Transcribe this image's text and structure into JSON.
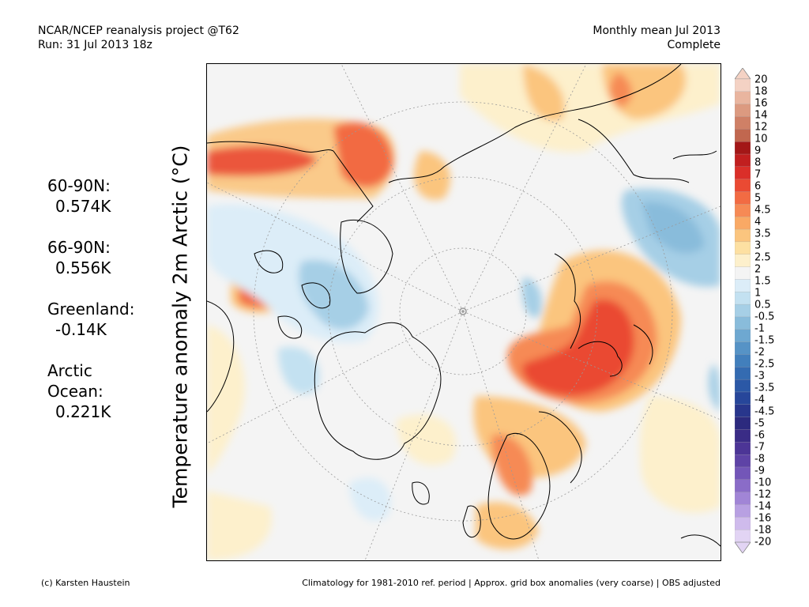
{
  "header": {
    "left_line1": "NCAR/NCEP reanalysis project @T62",
    "left_line2": "Run: 31 Jul 2013 18z",
    "right_line1": "Monthly mean Jul 2013",
    "right_line2": "Complete"
  },
  "y_title": "Temperature anomaly 2m Arctic (°C)",
  "stats": [
    {
      "label": "60-90N:",
      "value": "0.574K"
    },
    {
      "label": "66-90N:",
      "value": "0.556K"
    },
    {
      "label": "Greenland:",
      "value": "-0.14K"
    },
    {
      "label": "Arctic\nOcean:",
      "value": "0.221K"
    }
  ],
  "colorbar": {
    "labels": [
      "20",
      "18",
      "16",
      "14",
      "12",
      "10",
      "9",
      "8",
      "7",
      "6",
      "5",
      "4.5",
      "4",
      "3.5",
      "3",
      "2.5",
      "2",
      "1.5",
      "1",
      "0.5",
      "-0.5",
      "-1",
      "-1.5",
      "-2",
      "-2.5",
      "-3",
      "-3.5",
      "-4",
      "-4.5",
      "-5",
      "-6",
      "-7",
      "-8",
      "-9",
      "-10",
      "-12",
      "-14",
      "-16",
      "-18",
      "-20"
    ],
    "colors": [
      "#f4d2c4",
      "#e9b59f",
      "#dc9a80",
      "#cf8066",
      "#c1674f",
      "#a31717",
      "#c11f1f",
      "#da2f29",
      "#ea4a33",
      "#f26b43",
      "#f68a55",
      "#f9a965",
      "#fbc57e",
      "#fde0a2",
      "#fdf0cc",
      "#f4f4f4",
      "#dcedf8",
      "#c3e1f1",
      "#a6cfe6",
      "#89bcdb",
      "#6ea8d1",
      "#5693c6",
      "#427fbc",
      "#346bb1",
      "#2b58a6",
      "#27469a",
      "#28368c",
      "#2c2a7e",
      "#3a2c86",
      "#4c3596",
      "#5e43a6",
      "#7356b8",
      "#8a6cc8",
      "#a185d6",
      "#b8a0e2",
      "#cfbbec",
      "#e2d4f4"
    ]
  },
  "footer": {
    "left": "(c) Karsten Haustein",
    "right": "Climatology for 1981-2010 ref. period | Approx. grid box anomalies (very coarse) | OBS adjusted"
  }
}
